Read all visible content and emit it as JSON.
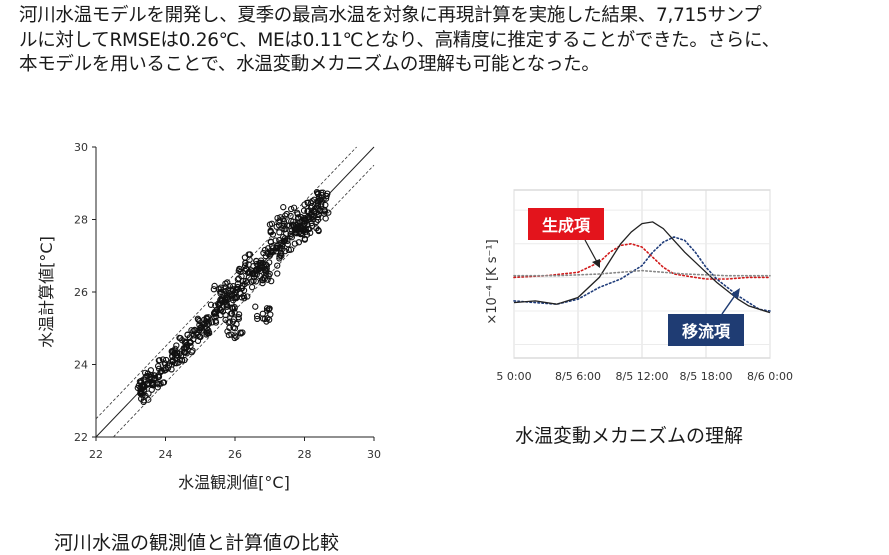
{
  "summary": {
    "line1": "河川水温モデルを開発し、夏季の最高水温を対象に再現計算を実施した結果、7,715サンプ",
    "line2": "ルに対してRMSEは0.26℃、MEは0.11℃となり、高精度に推定することができた。さらに、",
    "line3": "本モデルを用いることで、水温変動メカニズムの理解も可能となった。"
  },
  "captions": {
    "left": "河川水温の観測値と計算値の比較",
    "right": "水温変動メカニズムの理解"
  },
  "chart_data": [
    {
      "type": "scatter",
      "xlabel": "水温観測値[°C]",
      "ylabel": "水温計算値[°C]",
      "xlim": [
        22,
        30
      ],
      "ylim": [
        22,
        30
      ],
      "xticks": [
        "22",
        "24",
        "26",
        "28",
        "30"
      ],
      "yticks": [
        "22",
        "24",
        "26",
        "28",
        "30"
      ],
      "reference_lines": {
        "one_to_one": true,
        "band_offset": 0.5
      },
      "marker": "open-circle",
      "color": "#111111",
      "points_approx": [
        [
          23.3,
          23.2
        ],
        [
          23.3,
          23.5
        ],
        [
          23.4,
          23.4
        ],
        [
          23.6,
          23.5
        ],
        [
          23.8,
          23.7
        ],
        [
          24.0,
          23.9
        ],
        [
          24.2,
          24.1
        ],
        [
          24.4,
          24.3
        ],
        [
          24.6,
          24.6
        ],
        [
          24.8,
          24.7
        ],
        [
          25.0,
          25.0
        ],
        [
          25.2,
          25.1
        ],
        [
          25.4,
          25.4
        ],
        [
          25.6,
          25.5
        ],
        [
          25.8,
          25.8
        ],
        [
          26.0,
          26.0
        ],
        [
          26.2,
          26.1
        ],
        [
          26.4,
          26.4
        ],
        [
          26.6,
          26.6
        ],
        [
          26.8,
          26.8
        ],
        [
          27.0,
          27.0
        ],
        [
          27.2,
          27.2
        ],
        [
          27.4,
          27.4
        ],
        [
          27.6,
          27.6
        ],
        [
          27.8,
          27.8
        ],
        [
          28.0,
          28.0
        ],
        [
          28.2,
          28.2
        ],
        [
          28.4,
          28.3
        ],
        [
          28.6,
          28.4
        ],
        [
          28.5,
          28.5
        ],
        [
          27.6,
          28.1
        ],
        [
          27.9,
          27.6
        ],
        [
          28.2,
          27.9
        ],
        [
          26.8,
          25.4
        ],
        [
          26.0,
          25.0
        ],
        [
          25.9,
          25.4
        ],
        [
          26.3,
          26.8
        ],
        [
          25.6,
          26.0
        ],
        [
          27.2,
          27.8
        ],
        [
          27.0,
          26.5
        ]
      ]
    },
    {
      "type": "line",
      "ylabel": "×10⁻⁴ [K s⁻¹]",
      "xticks": [
        "5 0:00",
        "8/5 6:00",
        "8/5 12:00",
        "8/5 18:00",
        "8/6 0:00"
      ],
      "xlim_hours": [
        0,
        24
      ],
      "ylim": [
        -2.4,
        2.6
      ],
      "series": [
        {
          "name": "生成項",
          "color": "#d11a1a",
          "style": "dotted",
          "x": [
            0,
            3,
            6,
            8,
            9,
            10,
            11,
            12,
            13,
            14,
            15,
            16,
            17,
            18,
            20,
            22,
            24
          ],
          "y": [
            0.0,
            0.05,
            0.15,
            0.45,
            0.75,
            0.95,
            1.0,
            0.9,
            0.6,
            0.3,
            0.1,
            0.05,
            0.0,
            -0.05,
            -0.05,
            0.0,
            0.0
          ]
        },
        {
          "name": "移流項",
          "color": "#1f3c7a",
          "style": "dotted",
          "x": [
            0,
            2,
            4,
            6,
            8,
            10,
            12,
            13,
            14,
            15,
            16,
            17,
            18,
            19,
            20,
            21,
            22,
            23,
            24
          ],
          "y": [
            -0.7,
            -0.75,
            -0.8,
            -0.65,
            -0.3,
            -0.05,
            0.35,
            0.75,
            1.05,
            1.2,
            1.1,
            0.75,
            0.3,
            -0.05,
            -0.3,
            -0.55,
            -0.75,
            -0.95,
            -1.0
          ]
        },
        {
          "name": "",
          "color": "#222222",
          "style": "solid",
          "x": [
            0,
            2,
            4,
            6,
            8,
            9,
            10,
            11,
            12,
            13,
            14,
            15,
            16,
            17,
            18,
            19,
            20,
            21,
            22,
            23,
            24
          ],
          "y": [
            -0.75,
            -0.7,
            -0.8,
            -0.6,
            0.0,
            0.5,
            1.0,
            1.35,
            1.6,
            1.65,
            1.45,
            1.1,
            0.75,
            0.45,
            0.15,
            -0.15,
            -0.4,
            -0.65,
            -0.85,
            -0.95,
            -1.05
          ]
        },
        {
          "name": "",
          "color": "#888888",
          "style": "dotted",
          "x": [
            0,
            4,
            8,
            12,
            16,
            20,
            24
          ],
          "y": [
            0.05,
            0.05,
            0.1,
            0.2,
            0.1,
            0.05,
            0.05
          ]
        }
      ],
      "labels": {
        "production": "生成項",
        "advection": "移流項"
      },
      "label_colors": {
        "production": "#d11a1a",
        "advection": "#1f3c7a"
      }
    }
  ]
}
